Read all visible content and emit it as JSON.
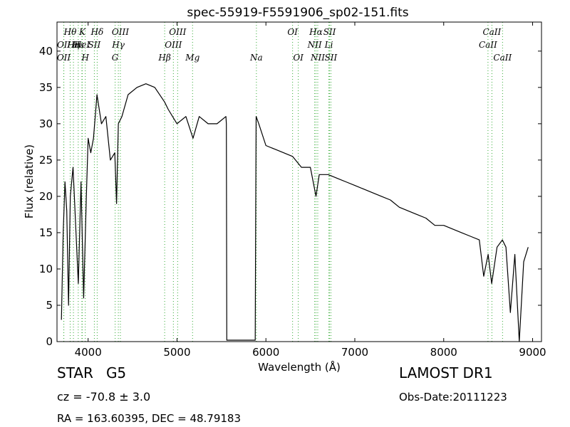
{
  "chart_data": {
    "type": "line",
    "title": "spec-55919-F5591906_sp02-151.fits",
    "xlabel": "Wavelength (Å)",
    "ylabel": "Flux (relative)",
    "xlim": [
      3650,
      9100
    ],
    "ylim": [
      0,
      44
    ],
    "x_ticks": [
      4000,
      5000,
      6000,
      7000,
      8000,
      9000
    ],
    "y_ticks": [
      0,
      5,
      10,
      15,
      20,
      25,
      30,
      35,
      40
    ],
    "grid": false,
    "legend": "none",
    "colors": {
      "flux": "#000000",
      "line_markers": "#33aa33",
      "frame": "#000000"
    },
    "series": [
      {
        "x": [
          3700,
          3720,
          3740,
          3760,
          3780,
          3800,
          3830,
          3860,
          3890,
          3920,
          3950,
          3980,
          4000,
          4030,
          4060,
          4100,
          4150,
          4200,
          4250,
          4300,
          4320,
          4340,
          4380,
          4450,
          4550,
          4650,
          4750,
          4860,
          4900,
          5000,
          5100,
          5180,
          5250,
          5350,
          5450,
          5550,
          5555,
          5560,
          5880,
          5885,
          5890,
          5920,
          6000,
          6100,
          6200,
          6300,
          6400,
          6500,
          6563,
          6600,
          6700,
          6800,
          6900,
          7000,
          7100,
          7200,
          7300,
          7400,
          7500,
          7600,
          7700,
          7800,
          7900,
          8000,
          8100,
          8200,
          8300,
          8400,
          8450,
          8500,
          8540,
          8600,
          8660,
          8700,
          8750,
          8800,
          8850,
          8900,
          8950
        ],
        "y": [
          3,
          15,
          22,
          18,
          5,
          20,
          24,
          16,
          8,
          22,
          6,
          20,
          28,
          26,
          28,
          34,
          30,
          31,
          25,
          26,
          19,
          30,
          31,
          34,
          35,
          35.5,
          35,
          33,
          32,
          30,
          31,
          28,
          31,
          30,
          30,
          31,
          30,
          0.2,
          0.2,
          18,
          31,
          30,
          27,
          26.5,
          26,
          25.5,
          24,
          24,
          20,
          23,
          23,
          22.5,
          22,
          21.5,
          21,
          20.5,
          20,
          19.5,
          18.5,
          18,
          17.5,
          17,
          16,
          16,
          15.5,
          15,
          14.5,
          14,
          9,
          12,
          8,
          13,
          14,
          13,
          4,
          12,
          0,
          11,
          13
        ]
      }
    ],
    "spectral_lines": [
      {
        "label": "Hθ",
        "x": 3798,
        "row": 1
      },
      {
        "label": "K",
        "x": 3934,
        "row": 1
      },
      {
        "label": "Hδ",
        "x": 4102,
        "row": 1
      },
      {
        "label": "OIII",
        "x": 4363,
        "row": 1
      },
      {
        "label": "OIII",
        "x": 5007,
        "row": 1
      },
      {
        "label": "OI",
        "x": 6300,
        "row": 1
      },
      {
        "label": "Hα",
        "x": 6563,
        "row": 1
      },
      {
        "label": "SII",
        "x": 6716,
        "row": 1
      },
      {
        "label": "CaII",
        "x": 8542,
        "row": 1
      },
      {
        "label": "OII",
        "x": 3727,
        "row": 2
      },
      {
        "label": "Hη",
        "x": 3835,
        "row": 2
      },
      {
        "label": "Hε",
        "x": 3889,
        "row": 2
      },
      {
        "label": "HeI",
        "x": 3930,
        "row": 2
      },
      {
        "label": "SII",
        "x": 4070,
        "row": 2
      },
      {
        "label": "Hγ",
        "x": 4340,
        "row": 2
      },
      {
        "label": "OIII",
        "x": 4959,
        "row": 2
      },
      {
        "label": "NII",
        "x": 6548,
        "row": 2
      },
      {
        "label": "Li",
        "x": 6708,
        "row": 2
      },
      {
        "label": "CaII",
        "x": 8498,
        "row": 2
      },
      {
        "label": "OII",
        "x": 3726,
        "row": 3
      },
      {
        "label": "H",
        "x": 3968,
        "row": 3
      },
      {
        "label": "G",
        "x": 4304,
        "row": 3
      },
      {
        "label": "Hβ",
        "x": 4861,
        "row": 3
      },
      {
        "label": "Mg",
        "x": 5175,
        "row": 3
      },
      {
        "label": "Na",
        "x": 5893,
        "row": 3
      },
      {
        "label": "OI",
        "x": 6364,
        "row": 3
      },
      {
        "label": "NII",
        "x": 6583,
        "row": 3
      },
      {
        "label": "SII",
        "x": 6731,
        "row": 3
      },
      {
        "label": "CaII",
        "x": 8662,
        "row": 3
      }
    ]
  },
  "info": {
    "object_class": "STAR",
    "subclass": "G5",
    "redshift": "cz = -70.8 ± 3.0",
    "coords": "RA = 163.60395, DEC = 48.79183",
    "survey": "LAMOST DR1",
    "obs_date": "Obs-Date:20111223"
  }
}
